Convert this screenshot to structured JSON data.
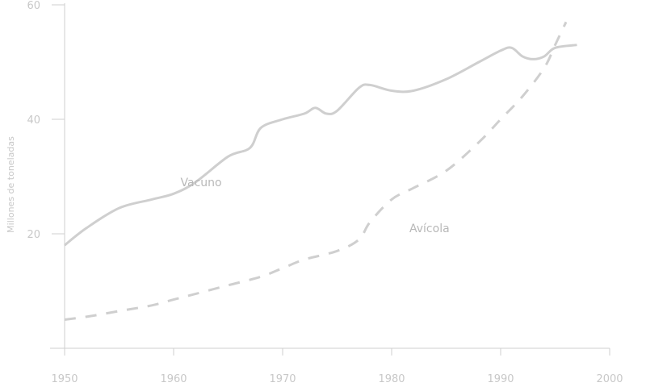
{
  "chart_data": {
    "type": "line",
    "ylabel": "Millones de toneladas",
    "xlim": [
      1950,
      2000
    ],
    "ylim": [
      0,
      60
    ],
    "x_ticks": [
      1950,
      1960,
      1970,
      1980,
      1990,
      2000
    ],
    "y_ticks": [
      20,
      40,
      60
    ],
    "grid": false,
    "series": [
      {
        "name": "Vacuno",
        "style": "solid",
        "color": "#cfcfcf",
        "x": [
          1950,
          1952,
          1955,
          1958,
          1960,
          1962,
          1965,
          1967,
          1968,
          1970,
          1972,
          1973,
          1974,
          1975,
          1977,
          1978,
          1980,
          1982,
          1985,
          1988,
          1990,
          1991,
          1992,
          1993,
          1994,
          1995,
          1997
        ],
        "y": [
          18,
          21,
          24.5,
          26,
          27,
          29,
          33.5,
          35,
          38.5,
          40,
          41,
          42,
          41,
          41.5,
          45.5,
          46,
          45,
          45,
          47,
          50,
          52,
          52.5,
          51,
          50.5,
          51,
          52.5,
          53
        ]
      },
      {
        "name": "Avícola",
        "style": "dashed",
        "color": "#cfcfcf",
        "x": [
          1950,
          1952,
          1955,
          1958,
          1960,
          1962,
          1965,
          1968,
          1970,
          1972,
          1975,
          1977,
          1978,
          1980,
          1982,
          1985,
          1988,
          1990,
          1992,
          1994,
          1995,
          1996
        ],
        "y": [
          5,
          5.5,
          6.5,
          7.5,
          8.5,
          9.5,
          11,
          12.5,
          14,
          15.5,
          17,
          19,
          22,
          26,
          28,
          31,
          36,
          40,
          44,
          49,
          53,
          57
        ]
      }
    ],
    "annotations": [
      {
        "text": "Vacuno",
        "x": 1961,
        "y": 29
      },
      {
        "text": "Avícola",
        "x": 1982,
        "y": 21
      }
    ]
  }
}
